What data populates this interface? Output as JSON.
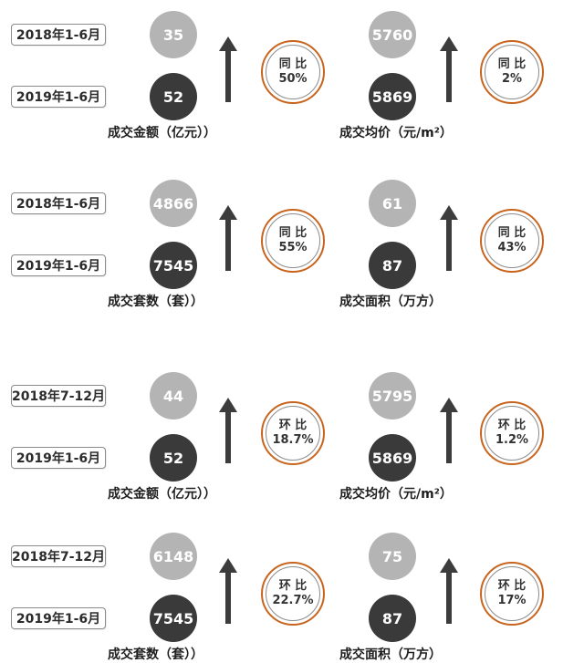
{
  "groups": [
    {
      "period_prev": "2018年1-6月",
      "period_curr": "2019年1-6月",
      "left": {
        "prev": "35",
        "curr": "52",
        "change_label": "同 比",
        "change_value": "50%",
        "metric": "成交金额（亿元））"
      },
      "right": {
        "prev": "5760",
        "curr": "5869",
        "change_label": "同 比",
        "change_value": "2%",
        "metric": "成交均价（元/m²）"
      }
    },
    {
      "period_prev": "2018年1-6月",
      "period_curr": "2019年1-6月",
      "left": {
        "prev": "4866",
        "curr": "7545",
        "change_label": "同 比",
        "change_value": "55%",
        "metric": "成交套数（套））"
      },
      "right": {
        "prev": "61",
        "curr": "87",
        "change_label": "同 比",
        "change_value": "43%",
        "metric": "成交面积（万方）"
      }
    },
    {
      "period_prev": "2018年7-12月",
      "period_curr": "2019年1-6月",
      "left": {
        "prev": "44",
        "curr": "52",
        "change_label": "环 比",
        "change_value": "18.7%",
        "metric": "成交金额（亿元））"
      },
      "right": {
        "prev": "5795",
        "curr": "5869",
        "change_label": "环 比",
        "change_value": "1.2%",
        "metric": "成交均价（元/m²）"
      }
    },
    {
      "period_prev": "2018年7-12月",
      "period_curr": "2019年1-6月",
      "left": {
        "prev": "6148",
        "curr": "7545",
        "change_label": "环 比",
        "change_value": "22.7%",
        "metric": "成交套数（套））"
      },
      "right": {
        "prev": "75",
        "curr": "87",
        "change_label": "环 比",
        "change_value": "17%",
        "metric": "成交面积（万方）"
      }
    }
  ],
  "colors": {
    "prev_circle": "#b4b4b4",
    "curr_circle": "#3a3a3a",
    "ring_accent": "#c8641e",
    "arrow": "#3c3c3c"
  },
  "icons": {
    "arrow": "arrow-up-icon"
  }
}
